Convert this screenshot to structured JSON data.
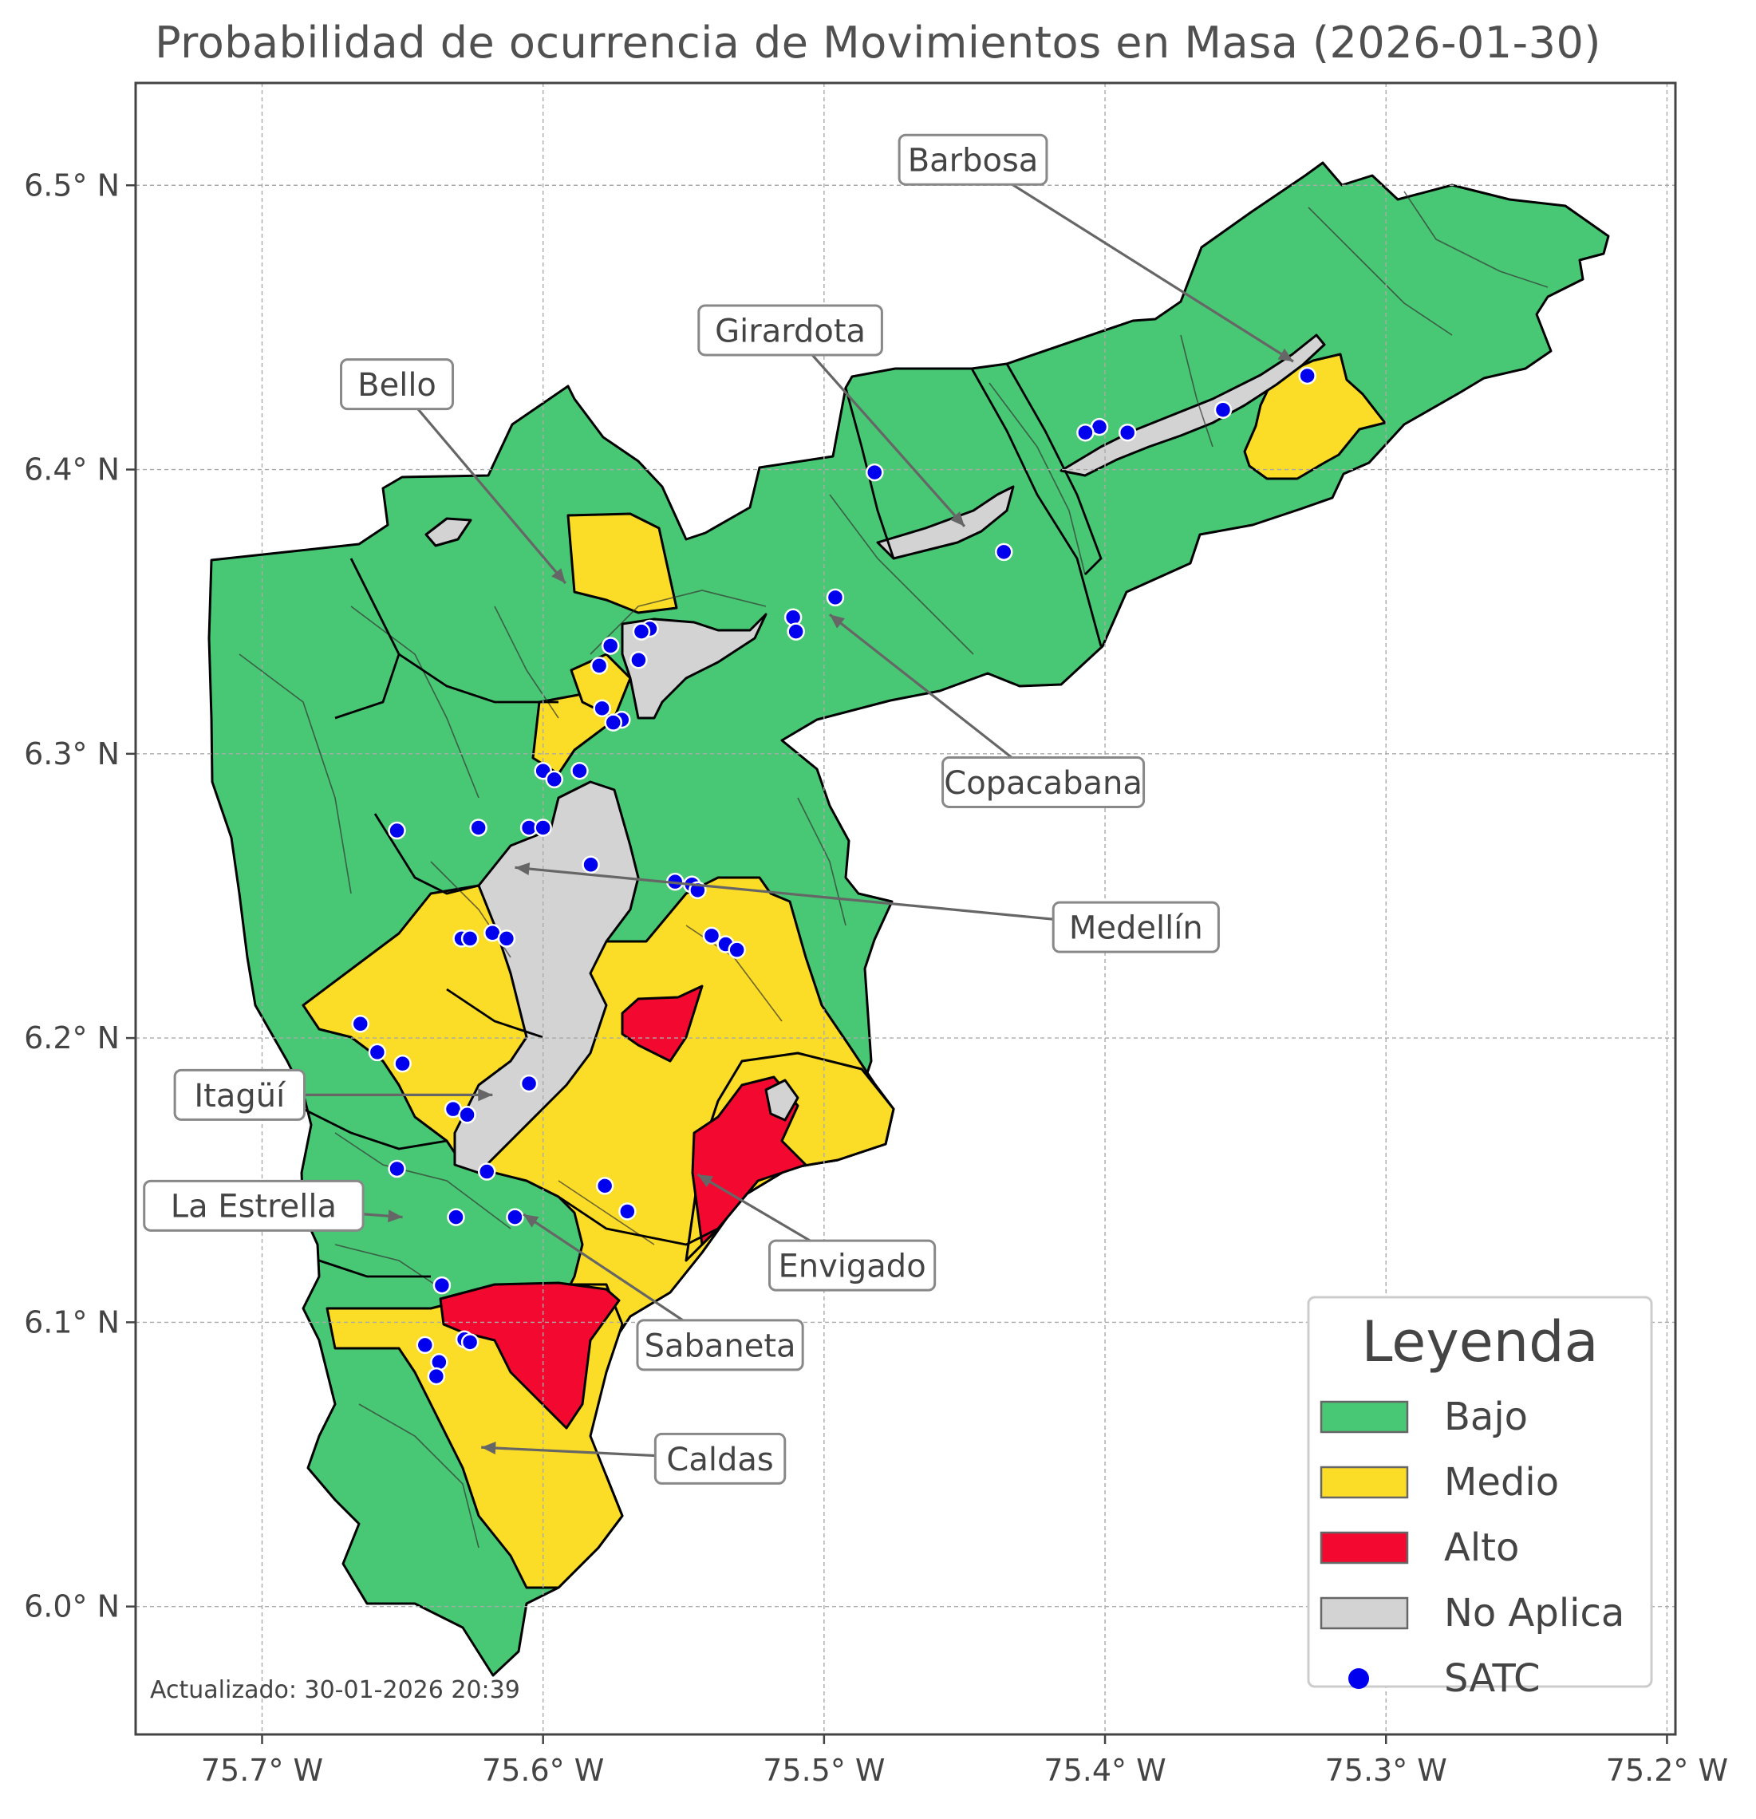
{
  "title": "Probabilidad de ocurrencia de Movimientos en Masa (2026-01-30)",
  "footer": "Actualizado: 30-01-2026 20:39",
  "axes": {
    "x_ticks": [
      {
        "value": -75.7,
        "label": "75.7° W"
      },
      {
        "value": -75.6,
        "label": "75.6° W"
      },
      {
        "value": -75.5,
        "label": "75.5° W"
      },
      {
        "value": -75.4,
        "label": "75.4° W"
      },
      {
        "value": -75.3,
        "label": "75.3° W"
      },
      {
        "value": -75.2,
        "label": "75.2° W"
      }
    ],
    "y_ticks": [
      {
        "value": 6.0,
        "label": "6.0° N"
      },
      {
        "value": 6.1,
        "label": "6.1° N"
      },
      {
        "value": 6.2,
        "label": "6.2° N"
      },
      {
        "value": 6.3,
        "label": "6.3° N"
      },
      {
        "value": 6.4,
        "label": "6.4° N"
      },
      {
        "value": 6.5,
        "label": "6.5° N"
      }
    ],
    "x_range": [
      -75.745,
      -75.197
    ],
    "y_range": [
      5.955,
      6.536
    ],
    "grid": true
  },
  "legend": {
    "title": "Leyenda",
    "placement": "bottom-right",
    "items": [
      {
        "label": "Bajo",
        "color": "#48c774",
        "kind": "patch"
      },
      {
        "label": "Medio",
        "color": "#fbdc26",
        "kind": "patch"
      },
      {
        "label": "Alto",
        "color": "#f3082f",
        "kind": "patch"
      },
      {
        "label": "No Aplica",
        "color": "#d3d3d3",
        "kind": "patch"
      },
      {
        "label": "SATC",
        "color": "#0000ee",
        "kind": "marker"
      }
    ]
  },
  "municipalities": [
    {
      "name": "Barbosa",
      "lon": -75.333,
      "lat": 6.438,
      "label_lon": -75.447,
      "label_lat": 6.509
    },
    {
      "name": "Girardota",
      "lon": -75.45,
      "lat": 6.38,
      "label_lon": -75.512,
      "label_lat": 6.449
    },
    {
      "name": "Bello",
      "lon": -75.592,
      "lat": 6.36,
      "label_lon": -75.652,
      "label_lat": 6.43
    },
    {
      "name": "Copacabana",
      "lon": -75.498,
      "lat": 6.349,
      "label_lon": -75.422,
      "label_lat": 6.29
    },
    {
      "name": "Medellín",
      "lon": -75.61,
      "lat": 6.26,
      "label_lon": -75.389,
      "label_lat": 6.239
    },
    {
      "name": "Itagüí",
      "lon": -75.618,
      "lat": 6.18,
      "label_lon": -75.708,
      "label_lat": 6.18
    },
    {
      "name": "La Estrella",
      "lon": -75.65,
      "lat": 6.137,
      "label_lon": -75.703,
      "label_lat": 6.141
    },
    {
      "name": "Envigado",
      "lon": -75.545,
      "lat": 6.152,
      "label_lon": -75.49,
      "label_lat": 6.12
    },
    {
      "name": "Sabaneta",
      "lon": -75.607,
      "lat": 6.138,
      "label_lon": -75.537,
      "label_lat": 6.092
    },
    {
      "name": "Caldas",
      "lon": -75.622,
      "lat": 6.056,
      "label_lon": -75.537,
      "label_lat": 6.052
    }
  ],
  "satc_stations": [
    [
      -75.328,
      6.433
    ],
    [
      -75.358,
      6.421
    ],
    [
      -75.392,
      6.413
    ],
    [
      -75.402,
      6.415
    ],
    [
      -75.407,
      6.413
    ],
    [
      -75.482,
      6.399
    ],
    [
      -75.436,
      6.371
    ],
    [
      -75.496,
      6.355
    ],
    [
      -75.511,
      6.348
    ],
    [
      -75.51,
      6.343
    ],
    [
      -75.562,
      6.344
    ],
    [
      -75.565,
      6.343
    ],
    [
      -75.566,
      6.333
    ],
    [
      -75.576,
      6.338
    ],
    [
      -75.58,
      6.331
    ],
    [
      -75.579,
      6.316
    ],
    [
      -75.572,
      6.312
    ],
    [
      -75.575,
      6.311
    ],
    [
      -75.6,
      6.294
    ],
    [
      -75.587,
      6.294
    ],
    [
      -75.596,
      6.291
    ],
    [
      -75.652,
      6.273
    ],
    [
      -75.623,
      6.274
    ],
    [
      -75.605,
      6.274
    ],
    [
      -75.6,
      6.274
    ],
    [
      -75.583,
      6.261
    ],
    [
      -75.553,
      6.255
    ],
    [
      -75.547,
      6.254
    ],
    [
      -75.545,
      6.252
    ],
    [
      -75.54,
      6.236
    ],
    [
      -75.535,
      6.233
    ],
    [
      -75.531,
      6.231
    ],
    [
      -75.629,
      6.235
    ],
    [
      -75.626,
      6.235
    ],
    [
      -75.618,
      6.237
    ],
    [
      -75.613,
      6.235
    ],
    [
      -75.665,
      6.205
    ],
    [
      -75.659,
      6.195
    ],
    [
      -75.65,
      6.191
    ],
    [
      -75.605,
      6.184
    ],
    [
      -75.632,
      6.175
    ],
    [
      -75.627,
      6.173
    ],
    [
      -75.652,
      6.154
    ],
    [
      -75.62,
      6.153
    ],
    [
      -75.631,
      6.137
    ],
    [
      -75.61,
      6.137
    ],
    [
      -75.578,
      6.148
    ],
    [
      -75.57,
      6.139
    ],
    [
      -75.636,
      6.113
    ],
    [
      -75.628,
      6.094
    ],
    [
      -75.626,
      6.093
    ],
    [
      -75.642,
      6.092
    ],
    [
      -75.637,
      6.086
    ],
    [
      -75.638,
      6.081
    ]
  ]
}
